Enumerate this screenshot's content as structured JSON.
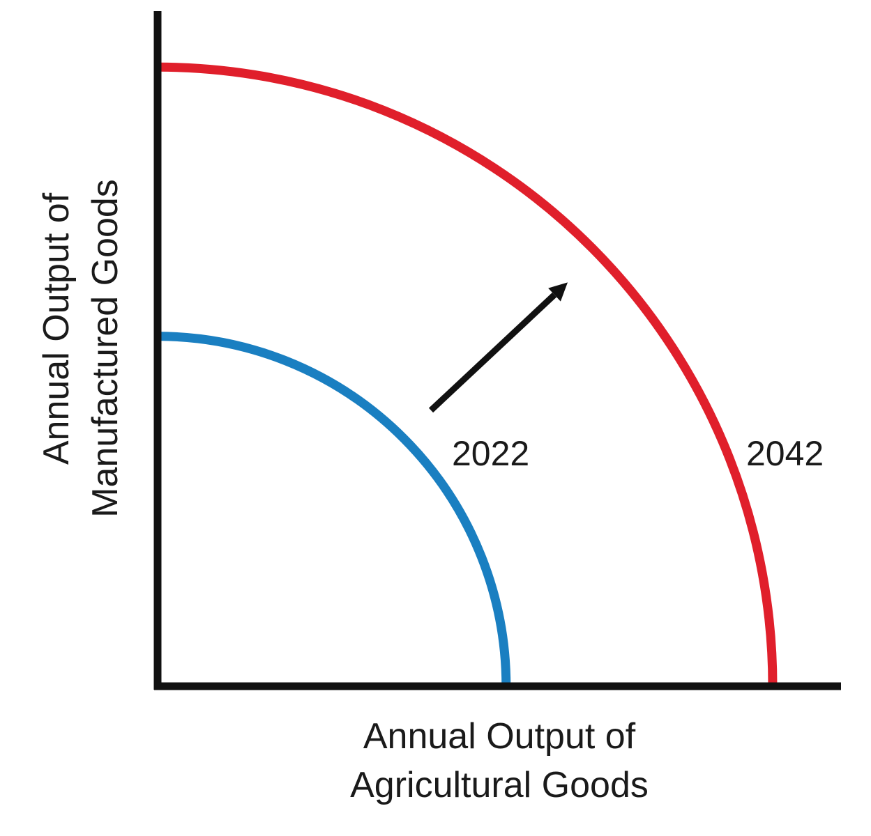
{
  "chart_data": {
    "type": "line",
    "title": "",
    "xlabel": [
      "Annual Output of",
      "Agricultural Goods"
    ],
    "ylabel": [
      "Annual Output of",
      "Manufactured Goods"
    ],
    "xlim": [
      0,
      100
    ],
    "ylim": [
      0,
      100
    ],
    "grid": false,
    "legend": "none",
    "series": [
      {
        "name": "2022",
        "color": "#1a7fc1",
        "x_intercept": 51,
        "y_intercept": 52
      },
      {
        "name": "2042",
        "color": "#e01f2b",
        "x_intercept": 90,
        "y_intercept": 92
      }
    ],
    "annotations": [
      {
        "type": "arrow",
        "from": [
          40,
          41
        ],
        "to": [
          60,
          60
        ],
        "color": "#111111"
      }
    ]
  }
}
